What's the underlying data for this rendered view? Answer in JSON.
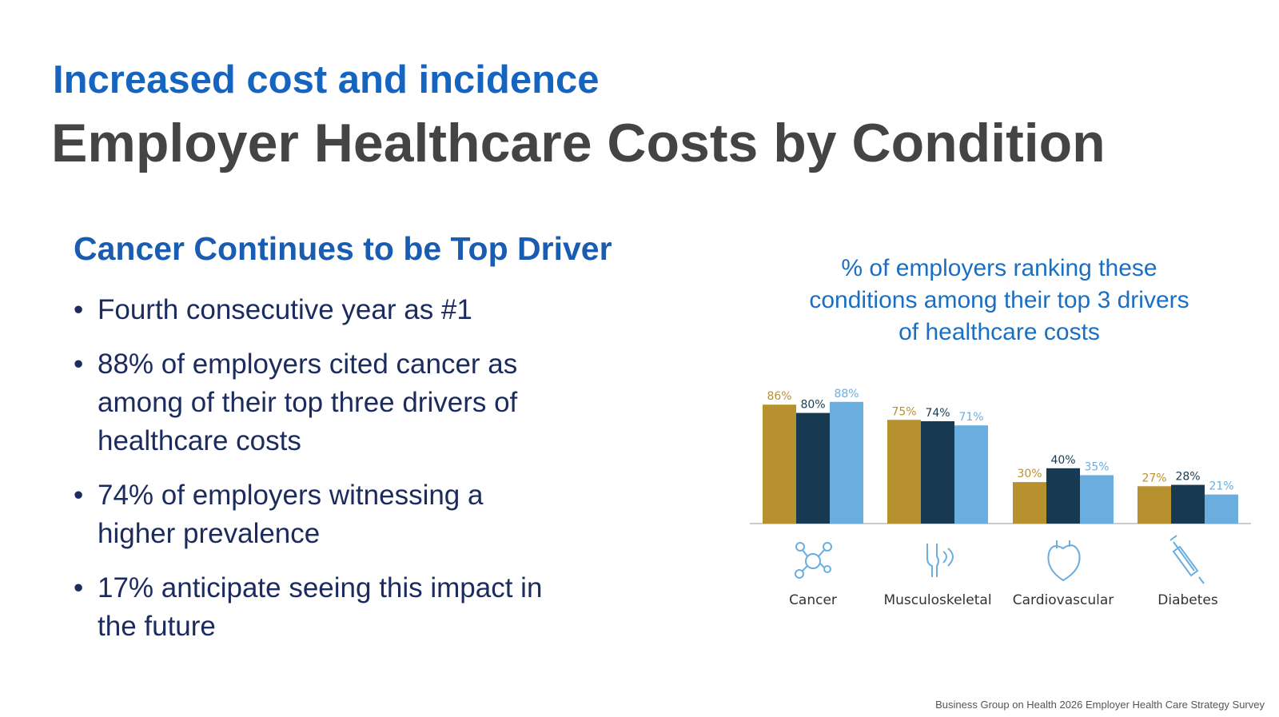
{
  "header": {
    "kicker": "Increased cost and incidence",
    "title": "Employer Healthcare Costs by Condition"
  },
  "left": {
    "heading": "Cancer Continues to be Top Driver",
    "bullets": [
      "Fourth consecutive year as #1",
      "88% of employers cited cancer as among of their top three drivers of healthcare costs",
      "74% of employers witnessing a higher prevalence",
      "17% anticipate seeing this impact in the future"
    ]
  },
  "chart_data": {
    "type": "bar",
    "title": "% of employers ranking these conditions among their top 3 drivers of healthcare costs",
    "categories": [
      "Cancer",
      "Musculoskeletal",
      "Cardiovascular",
      "Diabetes"
    ],
    "series": [
      {
        "color": "#b8912f",
        "values": [
          86,
          75,
          30,
          27
        ],
        "value_labels": [
          "86%",
          "75%",
          "30%",
          "27%"
        ]
      },
      {
        "color": "#173a52",
        "values": [
          80,
          74,
          40,
          28
        ],
        "value_labels": [
          "80%",
          "74%",
          "40%",
          "28%"
        ]
      },
      {
        "color": "#6aaee0",
        "values": [
          88,
          71,
          35,
          21
        ],
        "value_labels": [
          "88%",
          "71%",
          "35%",
          "21%"
        ]
      }
    ]
  },
  "source": "Business Group on Health 2026 Employer Health Care Strategy Survey"
}
